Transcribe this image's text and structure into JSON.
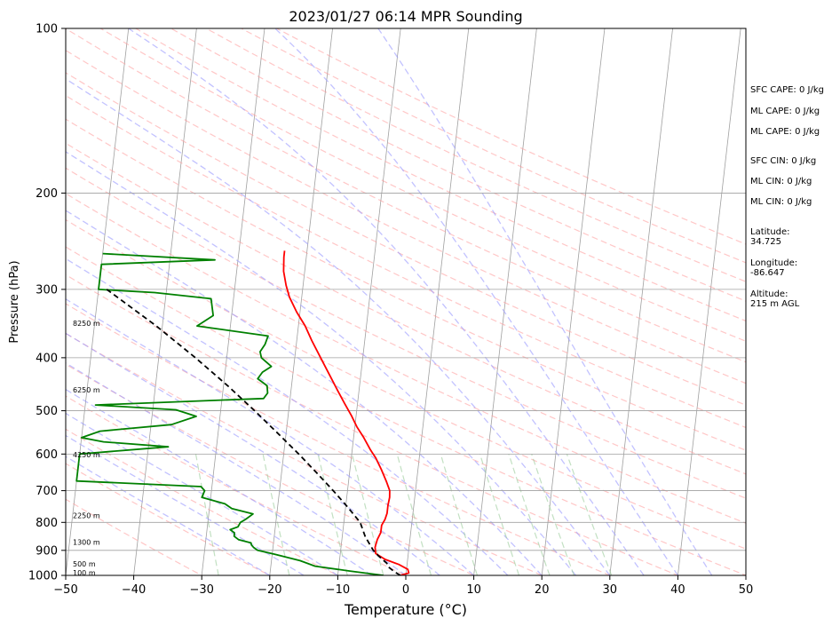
{
  "chart_data": {
    "type": "line",
    "title": "2023/01/27 06:14 MPR Sounding",
    "xlabel": "Temperature (°C)",
    "ylabel": "Pressure (hPa)",
    "xlim": [
      -50,
      50
    ],
    "ylim": [
      1000,
      100
    ],
    "y_scale": "log",
    "grid": true,
    "x_ticks": [
      -50,
      -40,
      -30,
      -20,
      -10,
      0,
      10,
      20,
      30,
      40,
      50
    ],
    "x_tick_labels": [
      "−50",
      "−40",
      "−30",
      "−20",
      "−10",
      "0",
      "10",
      "20",
      "30",
      "40",
      "50"
    ],
    "y_ticks": [
      1000,
      900,
      800,
      700,
      600,
      500,
      400,
      300,
      200,
      100
    ],
    "y_tick_labels": [
      "1000",
      "900",
      "800",
      "700",
      "600",
      "500",
      "400",
      "300",
      "200",
      "100"
    ],
    "series": [
      {
        "color": "#ff0000",
        "pressure": [
          1000,
          990,
          975,
          955,
          935,
          912,
          888,
          860,
          835,
          810,
          790,
          770,
          745,
          720,
          700,
          675,
          640,
          610,
          590,
          560,
          535,
          510,
          485,
          460,
          430,
          400,
          372,
          350,
          330,
          310,
          295,
          278,
          262,
          255
        ],
        "temperature": [
          -0.8,
          0.4,
          0.2,
          -1.2,
          -3.3,
          -4.8,
          -5.0,
          -4.8,
          -4.4,
          -4.4,
          -4.0,
          -3.8,
          -3.8,
          -3.7,
          -3.8,
          -4.4,
          -5.4,
          -6.4,
          -7.3,
          -8.5,
          -9.7,
          -10.7,
          -11.9,
          -13.1,
          -14.6,
          -16.2,
          -17.8,
          -19.0,
          -20.5,
          -21.8,
          -22.5,
          -23.1,
          -23.3,
          -23.3
        ]
      },
      {
        "color": "#008000",
        "pressure": [
          1000,
          982,
          962,
          940,
          915,
          900,
          890,
          880,
          872,
          860,
          848,
          836,
          825,
          815,
          800,
          790,
          772,
          755,
          740,
          720,
          700,
          688,
          672,
          600,
          582,
          570,
          560,
          545,
          530,
          512,
          498,
          488,
          480,
          475,
          464,
          450,
          437,
          425,
          415,
          400,
          390,
          378,
          365,
          350,
          335,
          312,
          304,
          300,
          270,
          265,
          258
        ],
        "temperature": [
          -3.3,
          -8.3,
          -13.5,
          -15.8,
          -19.6,
          -22.2,
          -22.8,
          -23.2,
          -23.3,
          -25.2,
          -25.9,
          -25.9,
          -26.6,
          -25.5,
          -25.2,
          -24.5,
          -23.5,
          -26.7,
          -27.8,
          -31.3,
          -31.0,
          -31.6,
          -50.0,
          -50.0,
          -37.1,
          -46.7,
          -50.0,
          -47.4,
          -37.0,
          -33.5,
          -36.6,
          -48.5,
          -33.5,
          -23.9,
          -23.4,
          -23.6,
          -25.1,
          -24.5,
          -23.3,
          -24.9,
          -25.2,
          -24.6,
          -24.3,
          -34.9,
          -32.7,
          -33.3,
          -41.7,
          -50.0,
          -50.0,
          -33.4,
          -50.0
        ]
      },
      {
        "color": "#000000",
        "linestyle": "dashed",
        "pressure": [
          1000,
          985,
          965,
          950,
          920,
          900,
          850,
          800,
          750,
          700,
          650,
          600,
          550,
          500,
          450,
          400,
          350,
          300
        ],
        "temperature": [
          -0.8,
          -1.7,
          -2.7,
          -3.0,
          -4.4,
          -5.2,
          -6.6,
          -7.6,
          -9.7,
          -12.1,
          -14.8,
          -17.8,
          -21.2,
          -25.0,
          -29.4,
          -34.6,
          -40.9,
          -48.8
        ]
      }
    ],
    "height_labels": [
      "100 m",
      "500 m",
      "1300 m",
      "2250 m",
      "4250 m",
      "6250 m",
      "8250 m"
    ],
    "annotations": [
      "SFC CAPE: 0 J/kg",
      "ML CAPE: 0 J/kg",
      "ML CAPE: 0 J/kg",
      "SFC CIN: 0 J/kg",
      "ML CIN: 0 J/kg",
      "ML CIN: 0 J/kg",
      "Latitude:",
      "34.725",
      "Longitude:",
      "-86.647",
      "Altitude:",
      "215 m AGL"
    ],
    "background_lines": {
      "isotherm_color": "#a0a0a0",
      "dry_adiabat_color": "#ff9999",
      "moist_adiabat_color": "#9999ff",
      "mixing_ratio_color": "#99cc99",
      "isobar_color": "#a0a0a0"
    }
  }
}
